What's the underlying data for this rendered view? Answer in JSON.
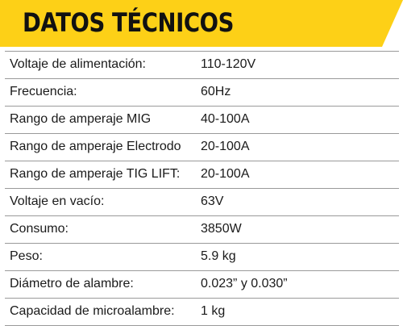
{
  "header": {
    "title": "DATOS TÉCNICOS",
    "accent_color": "#FDD017"
  },
  "specs": [
    {
      "label": "Voltaje de alimentación:",
      "value": "110-120V"
    },
    {
      "label": "Frecuencia:",
      "value": "60Hz"
    },
    {
      "label": "Rango de amperaje MIG",
      "value": "40-100A"
    },
    {
      "label": "Rango de amperaje Electrodo",
      "value": "20-100A"
    },
    {
      "label": "Rango de amperaje TIG LIFT:",
      "value": "20-100A"
    },
    {
      "label": "Voltaje en vacío:",
      "value": "63V"
    },
    {
      "label": "Consumo:",
      "value": "3850W"
    },
    {
      "label": "Peso:",
      "value": "5.9 kg"
    },
    {
      "label": "Diámetro de alambre:",
      "value": "0.023” y 0.030”"
    },
    {
      "label": "Capacidad de microalambre:",
      "value": "1 kg"
    }
  ]
}
